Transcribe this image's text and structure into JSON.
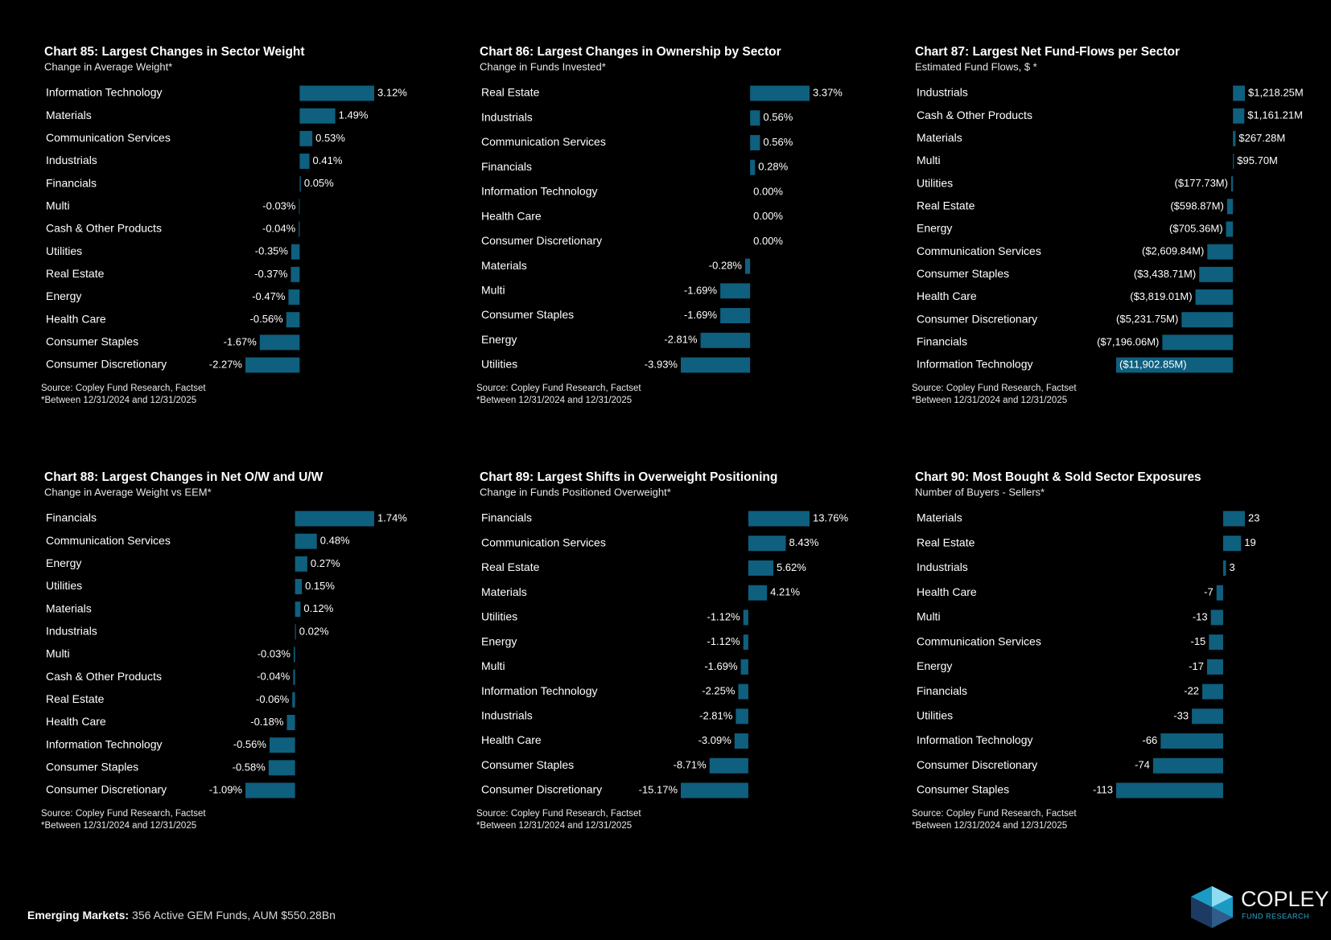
{
  "chart_data": [
    {
      "type": "bar",
      "title": "Chart 85:  Largest Changes in Sector Weight",
      "subtitle": "Change in Average Weight*",
      "color": "#0f5f7e",
      "categories": [
        "Information Technology",
        "Materials",
        "Communication Services",
        "Industrials",
        "Financials",
        "Multi",
        "Cash & Other Products",
        "Utilities",
        "Real Estate",
        "Energy",
        "Health Care",
        "Consumer Staples",
        "Consumer Discretionary"
      ],
      "values": [
        3.12,
        1.49,
        0.53,
        0.41,
        0.05,
        -0.03,
        -0.04,
        -0.35,
        -0.37,
        -0.47,
        -0.56,
        -1.67,
        -2.27
      ],
      "value_labels": [
        "3.12%",
        "1.49%",
        "0.53%",
        "0.41%",
        "0.05%",
        "-0.03%",
        "-0.04%",
        "-0.35%",
        "-0.37%",
        "-0.47%",
        "-0.56%",
        "-1.67%",
        "-2.27%"
      ],
      "source": "Source:  Copley Fund Research, Factset",
      "note": "*Between 12/31/2024 and 12/31/2025"
    },
    {
      "type": "bar",
      "title": "Chart 86:  Largest Changes in Ownership by Sector",
      "subtitle": "Change in Funds Invested*",
      "color": "#0f5f7e",
      "categories": [
        "Real Estate",
        "Industrials",
        "Communication Services",
        "Financials",
        "Information Technology",
        "Health Care",
        "Consumer Discretionary",
        "Materials",
        "Multi",
        "Consumer Staples",
        "Energy",
        "Utilities"
      ],
      "values": [
        3.37,
        0.56,
        0.56,
        0.28,
        0.0,
        0.0,
        0.0,
        -0.28,
        -1.69,
        -1.69,
        -2.81,
        -3.93
      ],
      "value_labels": [
        "3.37%",
        "0.56%",
        "0.56%",
        "0.28%",
        "0.00%",
        "0.00%",
        "0.00%",
        "-0.28%",
        "-1.69%",
        "-1.69%",
        "-2.81%",
        "-3.93%"
      ],
      "source": "Source:  Copley Fund Research, Factset",
      "note": "*Between 12/31/2024 and 12/31/2025"
    },
    {
      "type": "bar",
      "title": "Chart 87:  Largest Net Fund-Flows per Sector",
      "subtitle": "Estimated Fund Flows, $ *",
      "color": "#0f5f7e",
      "categories": [
        "Industrials",
        "Cash & Other Products",
        "Materials",
        "Multi",
        "Utilities",
        "Real Estate",
        "Energy",
        "Communication Services",
        "Consumer Staples",
        "Health Care",
        "Consumer Discretionary",
        "Financials",
        "Information Technology"
      ],
      "values": [
        1218.25,
        1161.21,
        267.28,
        95.7,
        -177.73,
        -598.87,
        -705.36,
        -2609.84,
        -3438.71,
        -3819.01,
        -5231.75,
        -7196.06,
        -11902.85
      ],
      "value_labels": [
        "$1,218.25M",
        "$1,161.21M",
        "$267.28M",
        "$95.70M",
        "($177.73M)",
        "($598.87M)",
        "($705.36M)",
        "($2,609.84M)",
        "($3,438.71M)",
        "($3,819.01M)",
        "($5,231.75M)",
        "($7,196.06M)",
        "($11,902.85M)"
      ],
      "source": "Source:  Copley Fund Research, Factset",
      "note": "*Between 12/31/2024 and 12/31/2025"
    },
    {
      "type": "bar",
      "title": "Chart 88:  Largest Changes in Net O/W and U/W",
      "subtitle": "Change in Average Weight vs EEM*",
      "color": "#0f5f7e",
      "categories": [
        "Financials",
        "Communication Services",
        "Energy",
        "Utilities",
        "Materials",
        "Industrials",
        "Multi",
        "Cash & Other Products",
        "Real Estate",
        "Health Care",
        "Information Technology",
        "Consumer Staples",
        "Consumer Discretionary"
      ],
      "values": [
        1.74,
        0.48,
        0.27,
        0.15,
        0.12,
        0.02,
        -0.03,
        -0.04,
        -0.06,
        -0.18,
        -0.56,
        -0.58,
        -1.09
      ],
      "value_labels": [
        "1.74%",
        "0.48%",
        "0.27%",
        "0.15%",
        "0.12%",
        "0.02%",
        "-0.03%",
        "-0.04%",
        "-0.06%",
        "-0.18%",
        "-0.56%",
        "-0.58%",
        "-1.09%"
      ],
      "source": "Source:  Copley Fund Research, Factset",
      "note": "*Between 12/31/2024 and 12/31/2025"
    },
    {
      "type": "bar",
      "title": "Chart 89:  Largest Shifts in Overweight Positioning",
      "subtitle": "Change in Funds Positioned Overweight*",
      "color": "#0f5f7e",
      "categories": [
        "Financials",
        "Communication Services",
        "Real Estate",
        "Materials",
        "Utilities",
        "Energy",
        "Multi",
        "Information Technology",
        "Industrials",
        "Health Care",
        "Consumer Staples",
        "Consumer Discretionary"
      ],
      "values": [
        13.76,
        8.43,
        5.62,
        4.21,
        -1.12,
        -1.12,
        -1.69,
        -2.25,
        -2.81,
        -3.09,
        -8.71,
        -15.17
      ],
      "value_labels": [
        "13.76%",
        "8.43%",
        "5.62%",
        "4.21%",
        "-1.12%",
        "-1.12%",
        "-1.69%",
        "-2.25%",
        "-2.81%",
        "-3.09%",
        "-8.71%",
        "-15.17%"
      ],
      "source": "Source:  Copley Fund Research, Factset",
      "note": "*Between 12/31/2024 and 12/31/2025"
    },
    {
      "type": "bar",
      "title": "Chart 90:  Most Bought & Sold Sector Exposures",
      "subtitle": "Number of Buyers - Sellers*",
      "color": "#0f5f7e",
      "categories": [
        "Materials",
        "Real Estate",
        "Industrials",
        "Health Care",
        "Multi",
        "Communication Services",
        "Energy",
        "Financials",
        "Utilities",
        "Information Technology",
        "Consumer Discretionary",
        "Consumer Staples"
      ],
      "values": [
        23,
        19,
        3,
        -7,
        -13,
        -15,
        -17,
        -22,
        -33,
        -66,
        -74,
        -113
      ],
      "source": "Source:  Copley Fund Research, Factset",
      "note": "*Between 12/31/2024 and 12/31/2025"
    }
  ],
  "footer": {
    "label": "Emerging Markets:",
    "text": "356 Active GEM Funds, AUM $550.28Bn"
  },
  "logo": {
    "name": "COPLEY",
    "tagline": "FUND RESEARCH"
  }
}
